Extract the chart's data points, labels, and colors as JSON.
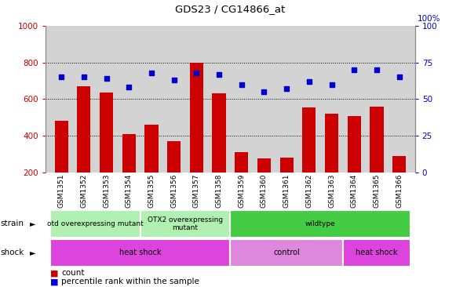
{
  "title": "GDS23 / CG14866_at",
  "samples": [
    "GSM1351",
    "GSM1352",
    "GSM1353",
    "GSM1354",
    "GSM1355",
    "GSM1356",
    "GSM1357",
    "GSM1358",
    "GSM1359",
    "GSM1360",
    "GSM1361",
    "GSM1362",
    "GSM1363",
    "GSM1364",
    "GSM1365",
    "GSM1366"
  ],
  "counts": [
    480,
    670,
    635,
    410,
    460,
    370,
    800,
    630,
    310,
    275,
    280,
    555,
    520,
    505,
    560,
    290
  ],
  "percentiles": [
    65,
    65,
    64,
    58,
    68,
    63,
    68,
    67,
    60,
    55,
    57,
    62,
    60,
    70,
    70,
    65
  ],
  "count_color": "#cc0000",
  "percentile_color": "#0000cc",
  "ylim_left": [
    200,
    1000
  ],
  "ylim_right": [
    0,
    100
  ],
  "yticks_left": [
    200,
    400,
    600,
    800,
    1000
  ],
  "yticks_right": [
    0,
    25,
    50,
    75,
    100
  ],
  "plot_bg_color": "#d3d3d3",
  "xticklabels_bg": "#d3d3d3",
  "strain_groups": [
    {
      "label": "otd overexpressing mutant",
      "start": 0,
      "end": 4,
      "color": "#b0f0b0"
    },
    {
      "label": "OTX2 overexpressing\nmutant",
      "start": 4,
      "end": 8,
      "color": "#b0f0b0"
    },
    {
      "label": "wildtype",
      "start": 8,
      "end": 16,
      "color": "#44cc44"
    }
  ],
  "shock_groups": [
    {
      "label": "heat shock",
      "start": 0,
      "end": 8,
      "color": "#dd44dd"
    },
    {
      "label": "control",
      "start": 8,
      "end": 13,
      "color": "#dd88dd"
    },
    {
      "label": "heat shock",
      "start": 13,
      "end": 16,
      "color": "#dd44dd"
    }
  ],
  "legend_count_label": "count",
  "legend_percentile_label": "percentile rank within the sample",
  "fig_width": 5.81,
  "fig_height": 3.66,
  "dpi": 100
}
